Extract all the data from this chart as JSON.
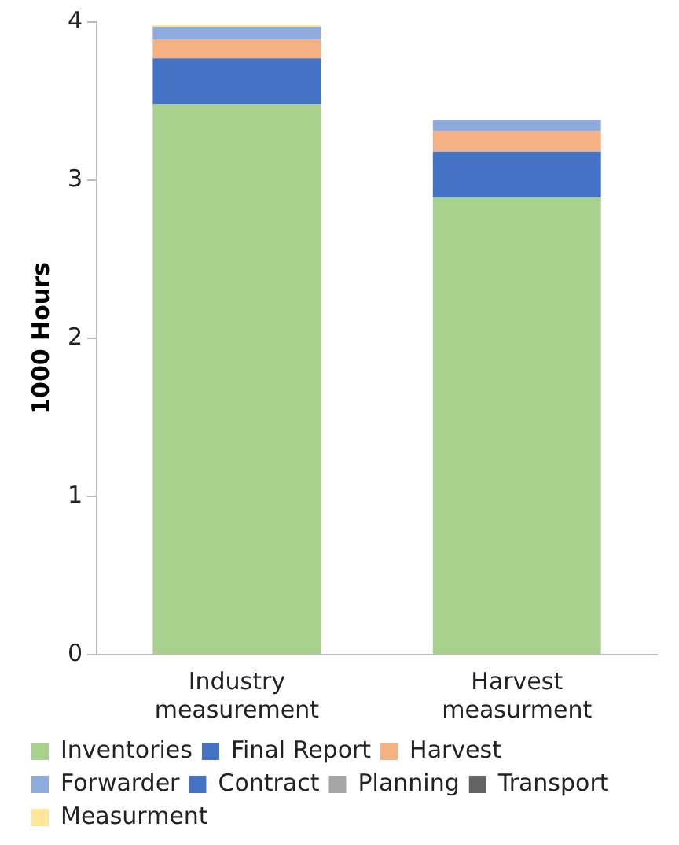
{
  "chart_data": {
    "type": "bar",
    "stacked": true,
    "ylabel": "1000 Hours",
    "categories": [
      "Industry measurement",
      "Harvest measurment"
    ],
    "series": [
      {
        "name": "Inventories",
        "color": "#a9d18e",
        "values": [
          3.48,
          2.89
        ]
      },
      {
        "name": "Final Report",
        "color": "#4472c4",
        "values": [
          0.29,
          0.29
        ]
      },
      {
        "name": "Harvest",
        "color": "#f4b183",
        "values": [
          0.12,
          0.13
        ]
      },
      {
        "name": "Forwarder",
        "color": "#8faadc",
        "values": [
          0.08,
          0.07
        ]
      },
      {
        "name": "Contract",
        "color": "#4472c4",
        "values": [
          0,
          0
        ]
      },
      {
        "name": "Planning",
        "color": "#a5a5a5",
        "values": [
          0,
          0
        ]
      },
      {
        "name": "Transport",
        "color": "#636363",
        "values": [
          0,
          0
        ]
      },
      {
        "name": "Measurment",
        "color": "#ffe699",
        "values": [
          0.01,
          0
        ]
      }
    ],
    "ylim": [
      0,
      4
    ],
    "yticks": [
      0,
      1,
      2,
      3,
      4
    ],
    "grid": false,
    "legend": "bottom"
  }
}
